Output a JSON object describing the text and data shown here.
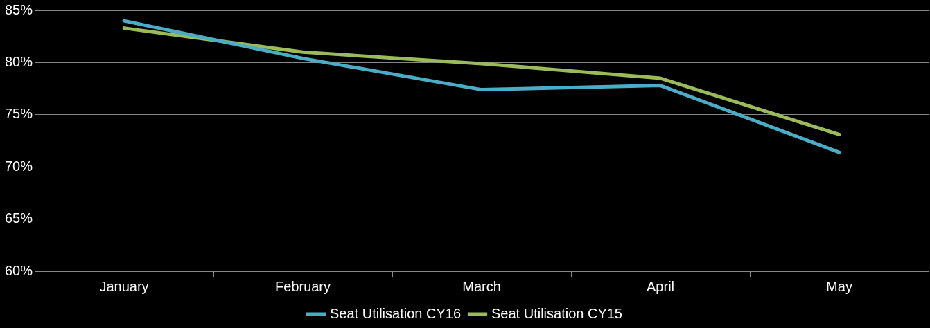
{
  "chart_data": {
    "type": "line",
    "categories": [
      "January",
      "February",
      "March",
      "April",
      "May"
    ],
    "series": [
      {
        "name": "Seat Utilisation CY16",
        "color": "#4bacc6",
        "values": [
          84.0,
          80.4,
          77.4,
          77.8,
          71.4
        ]
      },
      {
        "name": "Seat Utilisation CY15",
        "color": "#9bbb59",
        "values": [
          83.3,
          81.0,
          79.9,
          78.5,
          73.1
        ]
      }
    ],
    "ylim": [
      60,
      85
    ],
    "yticks": [
      {
        "value": 60,
        "label": "60%"
      },
      {
        "value": 65,
        "label": "65%"
      },
      {
        "value": 70,
        "label": "70%"
      },
      {
        "value": 75,
        "label": "75%"
      },
      {
        "value": 80,
        "label": "80%"
      },
      {
        "value": 85,
        "label": "85%"
      }
    ],
    "grid": "y",
    "legend": "bottom",
    "marker": "none"
  }
}
